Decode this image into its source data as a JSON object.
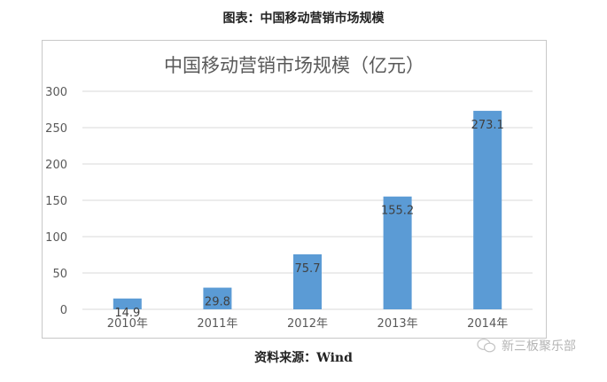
{
  "header": {
    "title": "图表：中国移动营销市场规模"
  },
  "footer": {
    "source": "资料来源：Wind"
  },
  "watermark": {
    "text": "新三板聚乐部"
  },
  "chart_data": {
    "type": "bar",
    "title": "中国移动营销市场规模（亿元）",
    "categories": [
      "2010年",
      "2011年",
      "2012年",
      "2013年",
      "2014年"
    ],
    "values": [
      14.9,
      29.8,
      75.7,
      155.2,
      273.1
    ],
    "data_labels": [
      "14.9",
      "29.8",
      "75.7",
      "155.2",
      "273.1"
    ],
    "ylim": [
      0,
      300
    ],
    "yticks": [
      0,
      50,
      100,
      150,
      200,
      250,
      300
    ],
    "grid": true,
    "bar_color": "#5b9bd5",
    "grid_color": "#d9d9d9",
    "label_color": "#404040",
    "tick_color": "#595959"
  }
}
